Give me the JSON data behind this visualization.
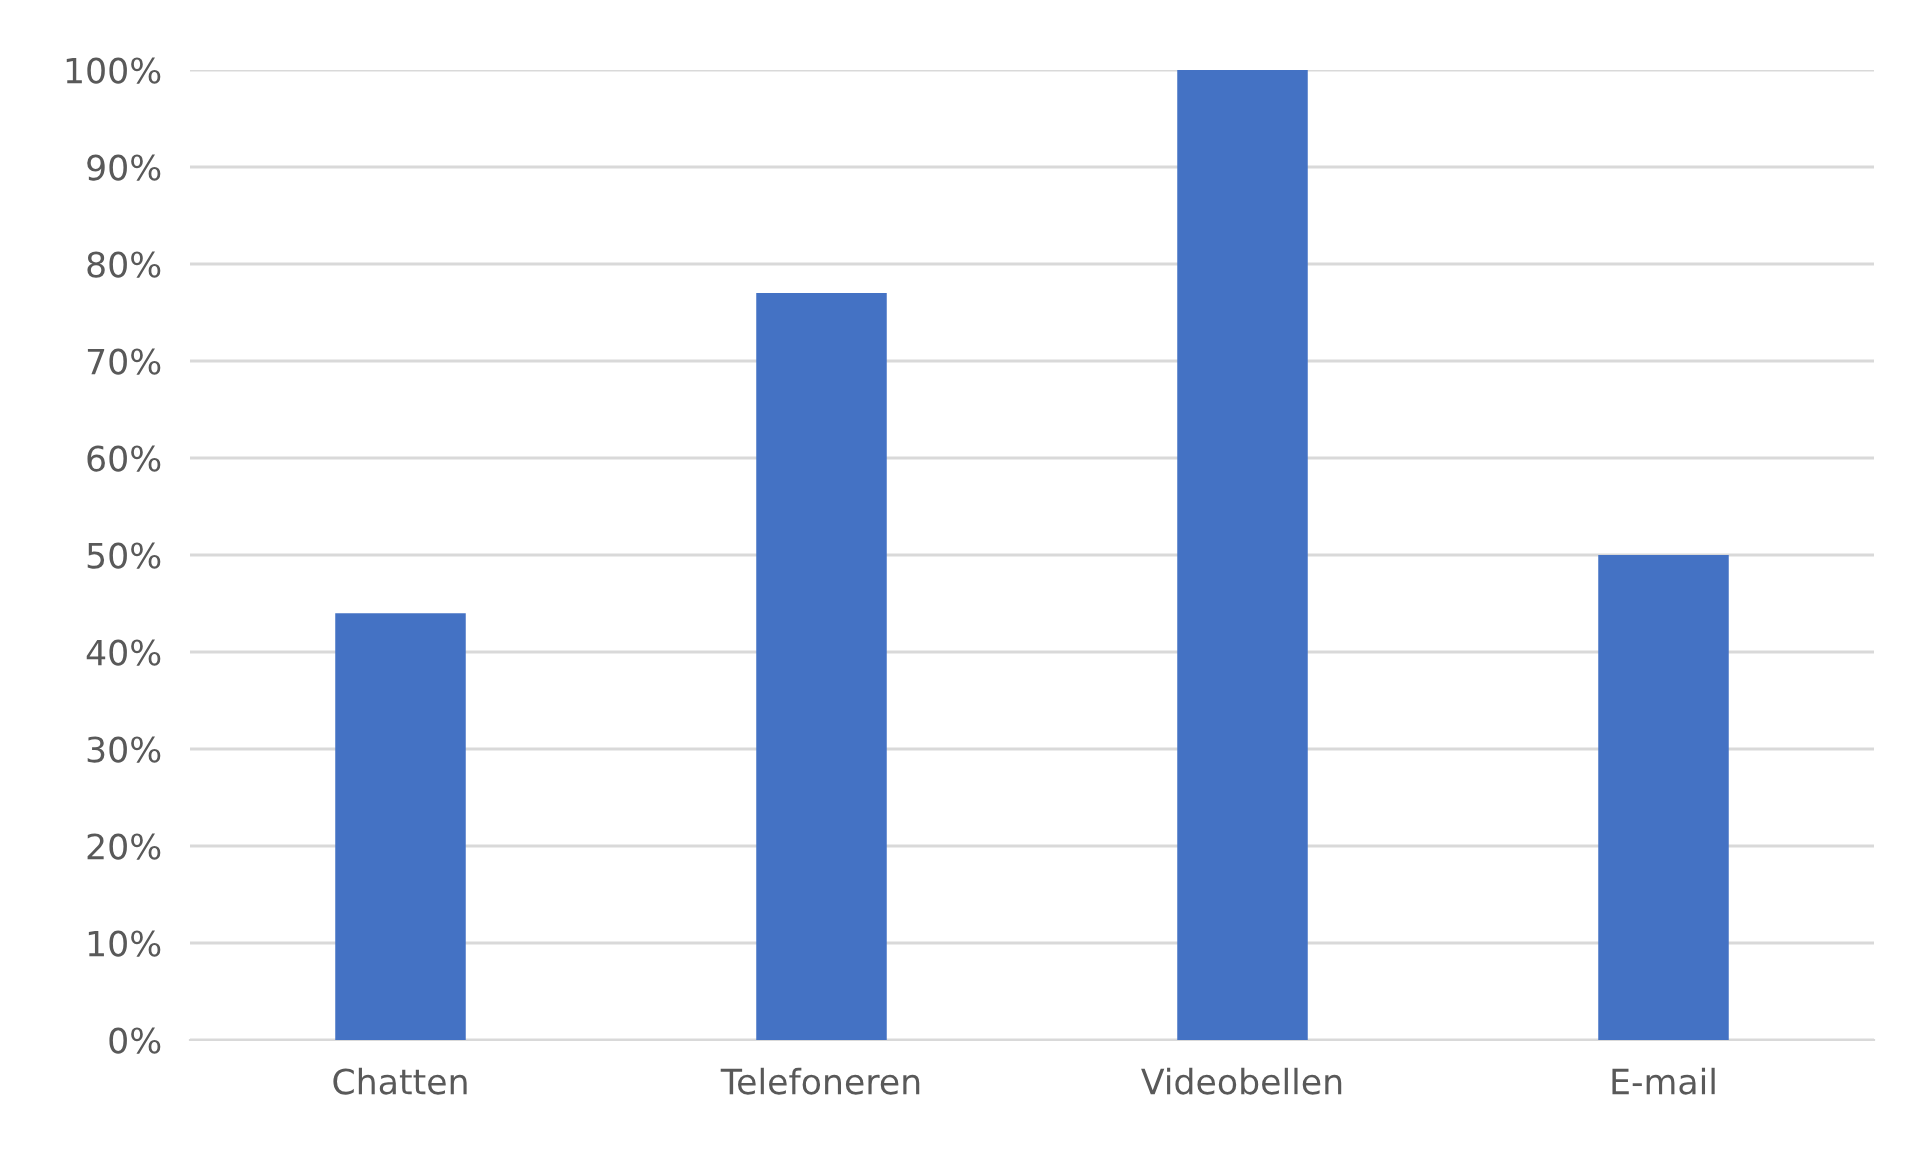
{
  "chart_data": {
    "type": "bar",
    "categories": [
      "Chatten",
      "Telefoneren",
      "Videobellen",
      "E-mail"
    ],
    "values": [
      44,
      77,
      100,
      50
    ],
    "color": "#4472c4",
    "ylim": [
      0,
      100
    ],
    "yticks": [
      {
        "value": 0,
        "label": "0%"
      },
      {
        "value": 10,
        "label": "10%"
      },
      {
        "value": 20,
        "label": "20%"
      },
      {
        "value": 30,
        "label": "30%"
      },
      {
        "value": 40,
        "label": "40%"
      },
      {
        "value": 50,
        "label": "50%"
      },
      {
        "value": 60,
        "label": "60%"
      },
      {
        "value": 70,
        "label": "70%"
      },
      {
        "value": 80,
        "label": "80%"
      },
      {
        "value": 90,
        "label": "90%"
      },
      {
        "value": 100,
        "label": "100%"
      }
    ],
    "grid": "y"
  }
}
